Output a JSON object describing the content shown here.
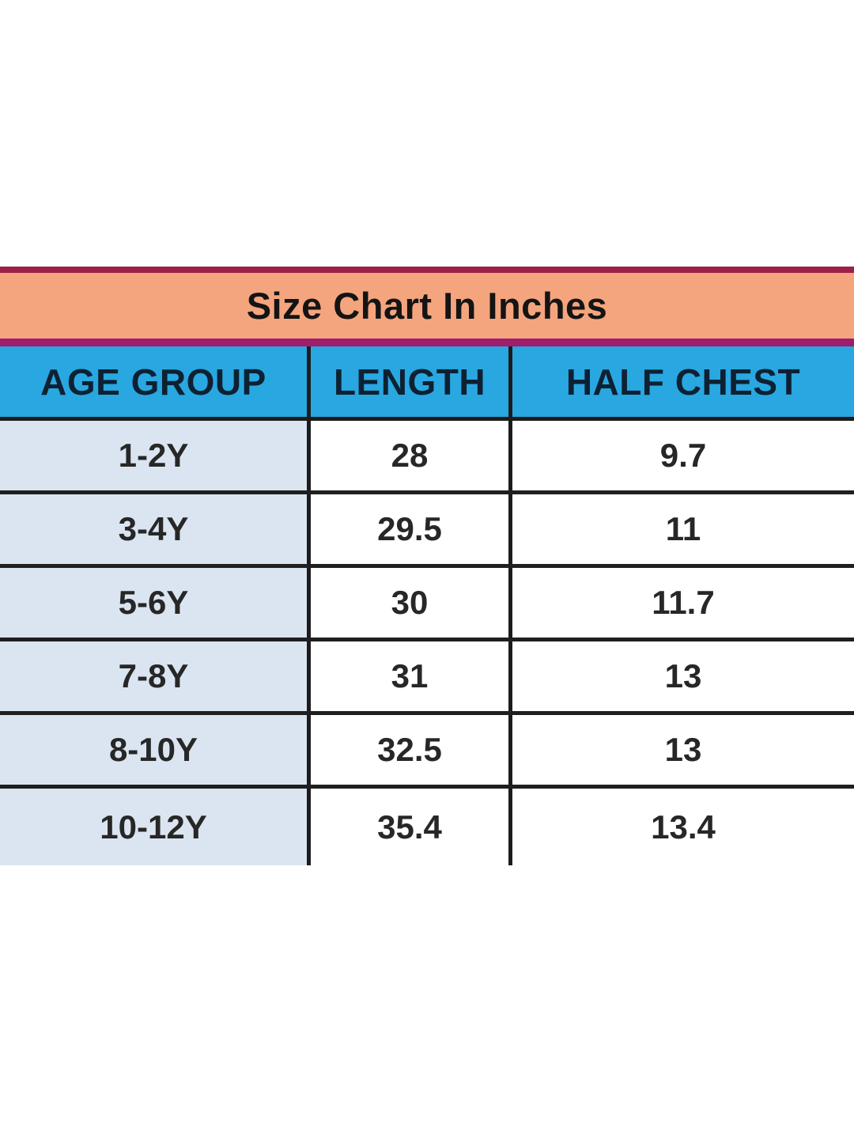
{
  "chart": {
    "title": "Size Chart In Inches",
    "unit": "inches",
    "columns": [
      "AGE GROUP",
      "LENGTH",
      "HALF CHEST"
    ],
    "rows": [
      [
        "1-2Y",
        "28",
        "9.7"
      ],
      [
        "3-4Y",
        "29.5",
        "11"
      ],
      [
        "5-6Y",
        "30",
        "11.7"
      ],
      [
        "7-8Y",
        "31",
        "13"
      ],
      [
        "8-10Y",
        "32.5",
        "13"
      ],
      [
        "10-12Y",
        "35.4",
        "13.4"
      ]
    ]
  },
  "chart_data": {
    "type": "table",
    "title": "Size Chart In Inches",
    "columns": [
      "AGE GROUP",
      "LENGTH",
      "HALF CHEST"
    ],
    "categories": [
      "1-2Y",
      "3-4Y",
      "5-6Y",
      "7-8Y",
      "8-10Y",
      "10-12Y"
    ],
    "series": [
      {
        "name": "LENGTH",
        "values": [
          28,
          29.5,
          30,
          31,
          32.5,
          35.4
        ]
      },
      {
        "name": "HALF CHEST",
        "values": [
          9.7,
          11,
          11.7,
          13,
          13,
          13.4
        ]
      }
    ]
  },
  "colors": {
    "title_background": "#f4a57e",
    "title_border_top": "#9b2048",
    "title_border_bottom": "#9e1d6e",
    "header_background": "#29a7e1",
    "header_text": "#0d2132",
    "first_column_background": "#dbe5f1",
    "grid_line": "#1c1c1c",
    "data_text": "#272727",
    "page_background": "#ffffff"
  }
}
